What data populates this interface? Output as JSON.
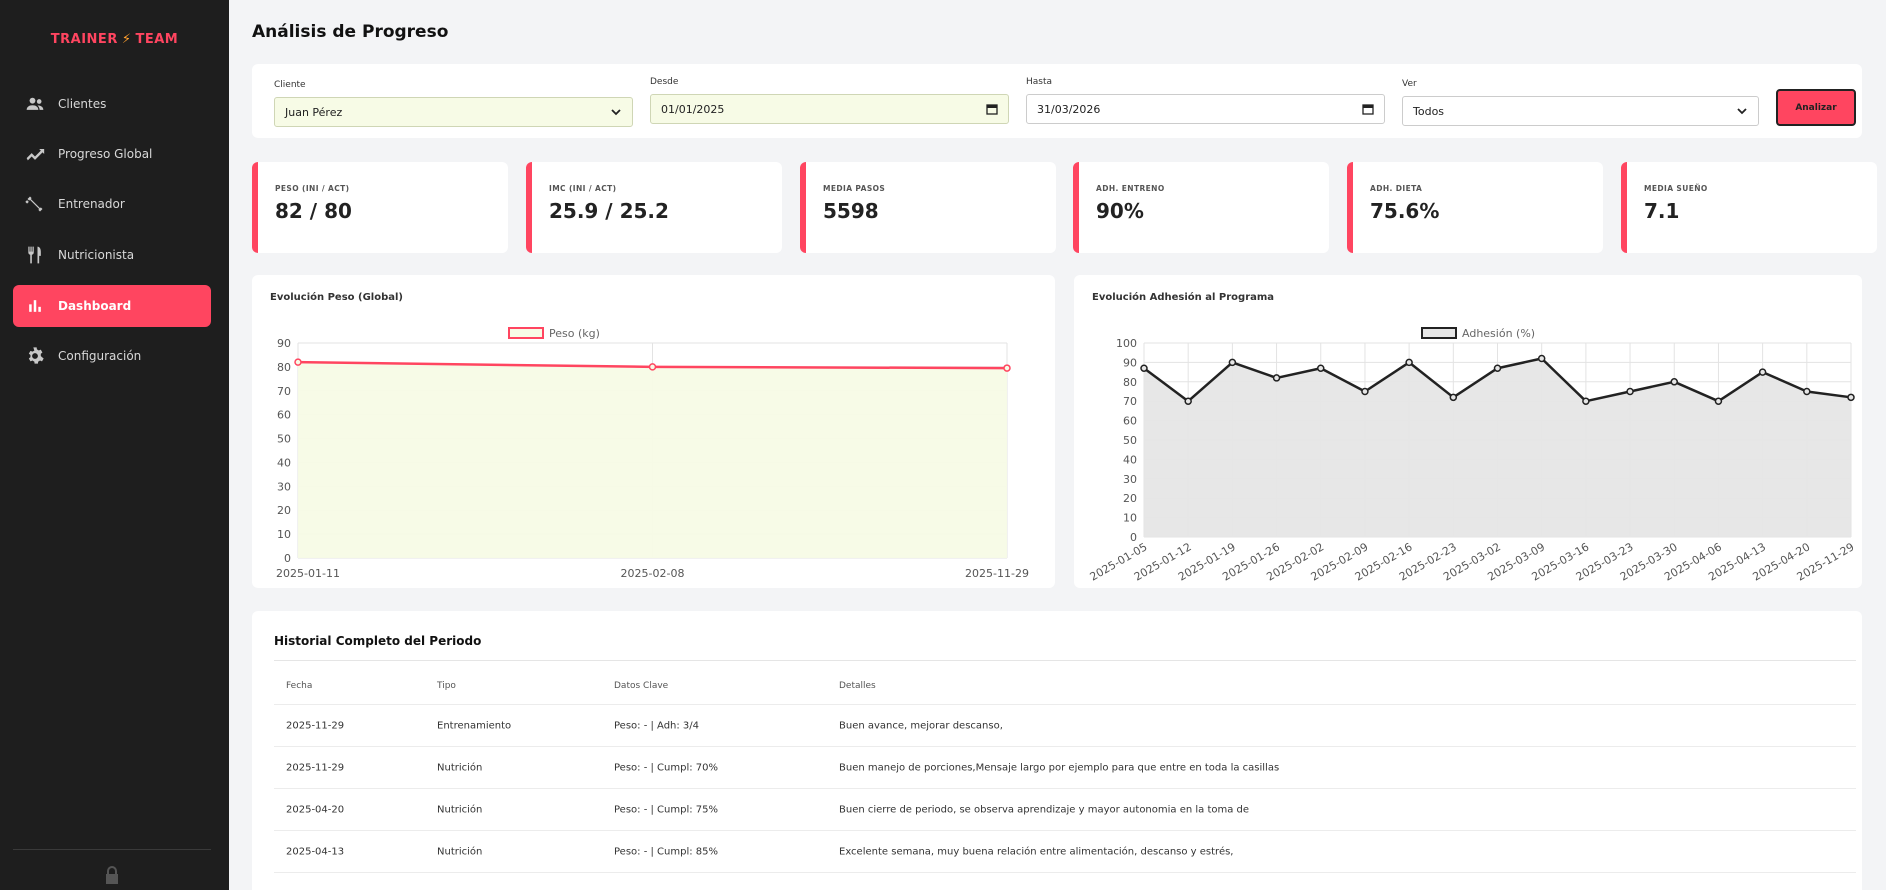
{
  "app": {
    "logo_left": "TRAINER",
    "logo_bolt": "⚡",
    "logo_right": "TEAM"
  },
  "sidebar": {
    "items": [
      {
        "label": "Clientes",
        "icon": "users-icon"
      },
      {
        "label": "Progreso Global",
        "icon": "trending-up-icon"
      },
      {
        "label": "Entrenador",
        "icon": "dumbbell-icon"
      },
      {
        "label": "Nutricionista",
        "icon": "utensils-icon"
      },
      {
        "label": "Dashboard",
        "icon": "bar-chart-icon",
        "active": true
      },
      {
        "label": "Configuración",
        "icon": "gear-icon"
      }
    ]
  },
  "page": {
    "title": "Análisis de Progreso"
  },
  "filters": {
    "cliente_label": "Cliente",
    "cliente_value": "Juan Pérez",
    "desde_label": "Desde",
    "desde_value": "01/01/2025",
    "hasta_label": "Hasta",
    "hasta_value": "31/03/2026",
    "ver_label": "Ver",
    "ver_value": "Todos",
    "analizar_label": "Analizar"
  },
  "kpis": [
    {
      "label": "PESO (INI / ACT)",
      "value": "82 / 80"
    },
    {
      "label": "IMC (INI / ACT)",
      "value": "25.9 / 25.2"
    },
    {
      "label": "MEDIA PASOS",
      "value": "5598"
    },
    {
      "label": "ADH. ENTRENO",
      "value": "90%"
    },
    {
      "label": "ADH. DIETA",
      "value": "75.6%"
    },
    {
      "label": "MEDIA SUEÑO",
      "value": "7.1"
    }
  ],
  "chart_data": [
    {
      "type": "line",
      "title": "Evolución Peso (Global)",
      "x": [
        "2025-01-11",
        "2025-02-08",
        "2025-11-29"
      ],
      "series": [
        {
          "name": "Peso (kg)",
          "values": [
            82,
            80,
            79.5
          ]
        }
      ],
      "ylim": [
        0,
        90
      ],
      "yticks": [
        0,
        10,
        20,
        30,
        40,
        50,
        60,
        70,
        80,
        90
      ],
      "grid": true,
      "legend": "top",
      "colors": {
        "line": "#ff4560",
        "fill": "#f7fbe6"
      }
    },
    {
      "type": "line",
      "title": "Evolución Adhesión al Programa",
      "x": [
        "2025-01-05",
        "2025-01-12",
        "2025-01-19",
        "2025-01-26",
        "2025-02-02",
        "2025-02-09",
        "2025-02-16",
        "2025-02-23",
        "2025-03-02",
        "2025-03-09",
        "2025-03-16",
        "2025-03-23",
        "2025-03-30",
        "2025-04-06",
        "2025-04-13",
        "2025-04-20",
        "2025-11-29"
      ],
      "series": [
        {
          "name": "Adhesión (%)",
          "values": [
            87,
            70,
            90,
            82,
            87,
            75,
            90,
            72,
            87,
            92,
            70,
            75,
            80,
            70,
            85,
            75,
            72
          ]
        }
      ],
      "ylim": [
        0,
        100
      ],
      "yticks": [
        0,
        10,
        20,
        30,
        40,
        50,
        60,
        70,
        80,
        90,
        100
      ],
      "grid": true,
      "legend": "top",
      "colors": {
        "line": "#222222",
        "fill": "#e6e6e6"
      }
    }
  ],
  "history": {
    "title": "Historial Completo del Periodo",
    "columns": [
      "Fecha",
      "Tipo",
      "Datos Clave",
      "Detalles"
    ],
    "rows": [
      [
        "2025-11-29",
        "Entrenamiento",
        "Peso: - | Adh: 3/4",
        "Buen avance, mejorar descanso,"
      ],
      [
        "2025-11-29",
        "Nutrición",
        "Peso: - | Cumpl: 70%",
        "Buen manejo de porciones,Mensaje largo por ejemplo para que entre en toda la casillas"
      ],
      [
        "2025-04-20",
        "Nutrición",
        "Peso: - | Cumpl: 75%",
        "Buen cierre de periodo, se observa aprendizaje y mayor autonomia en la toma de"
      ],
      [
        "2025-04-13",
        "Nutrición",
        "Peso: - | Cumpl: 85%",
        "Excelente semana, muy buena relación entre alimentación, descanso y estrés,"
      ]
    ]
  }
}
